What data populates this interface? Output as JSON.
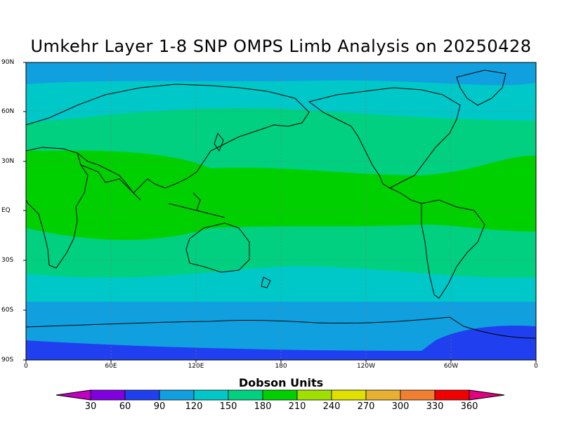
{
  "title": "Umkehr Layer 1-8 SNP OMPS Limb Analysis on 20250428",
  "lat_labels": [
    "90N",
    "60N",
    "30N",
    "EQ",
    "30S",
    "60S",
    "90S"
  ],
  "lon_labels": [
    "0",
    "60E",
    "120E",
    "180",
    "120W",
    "60W",
    "0"
  ],
  "colorbar": {
    "title": "Dobson Units",
    "ticks": [
      "30",
      "60",
      "90",
      "120",
      "150",
      "180",
      "210",
      "240",
      "270",
      "300",
      "330",
      "360"
    ],
    "colors": [
      "#c000c0",
      "#8000e0",
      "#2040f0",
      "#10a0e0",
      "#00c8c8",
      "#00d080",
      "#00d000",
      "#a0e000",
      "#e0e000",
      "#e8b030",
      "#f08030",
      "#f00000",
      "#e00080"
    ]
  }
}
